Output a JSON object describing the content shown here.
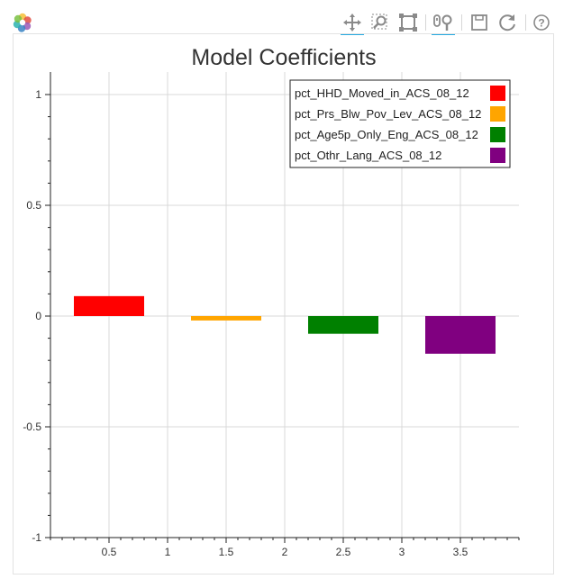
{
  "toolbar": {
    "tools": [
      {
        "name": "pan-tool",
        "icon": "pan-icon",
        "active": true
      },
      {
        "name": "box-zoom-tool",
        "icon": "box-zoom-icon",
        "active": false
      },
      {
        "name": "resize-tool",
        "icon": "resize-icon",
        "active": false
      },
      {
        "name": "wheel-zoom-tool",
        "icon": "wheel-zoom-icon",
        "active": true
      },
      {
        "name": "save-tool",
        "icon": "save-icon",
        "active": false
      },
      {
        "name": "reset-tool",
        "icon": "reset-icon",
        "active": false
      },
      {
        "name": "help-tool",
        "icon": "help-icon",
        "active": false
      }
    ],
    "accent_color": "#26aae1"
  },
  "chart_data": {
    "type": "bar",
    "title": "Model Coefficients",
    "xlabel": "",
    "ylabel": "",
    "xlim": [
      0,
      4
    ],
    "ylim": [
      -1,
      1
    ],
    "grid": true,
    "legend_position": "top-right",
    "x_ticks": [
      0.5,
      1,
      1.5,
      2,
      2.5,
      3,
      3.5
    ],
    "x_tick_labels": [
      "0.5",
      "1",
      "1.5",
      "2",
      "2.5",
      "3",
      "3.5"
    ],
    "y_ticks": [
      1,
      0.5,
      0,
      -0.5,
      -1
    ],
    "y_tick_labels": [
      "1",
      "0.5",
      "0",
      "-0.5",
      "-1"
    ],
    "bar_width": 0.6,
    "series": [
      {
        "name": "pct_HHD_Moved_in_ACS_08_12",
        "x": 0.5,
        "value": 0.09,
        "color": "#ff0000"
      },
      {
        "name": "pct_Prs_Blw_Pov_Lev_ACS_08_12",
        "x": 1.5,
        "value": -0.02,
        "color": "#ffa500"
      },
      {
        "name": "pct_Age5p_Only_Eng_ACS_08_12",
        "x": 2.5,
        "value": -0.08,
        "color": "#008000"
      },
      {
        "name": "pct_Othr_Lang_ACS_08_12",
        "x": 3.5,
        "value": -0.17,
        "color": "#800080"
      }
    ]
  }
}
